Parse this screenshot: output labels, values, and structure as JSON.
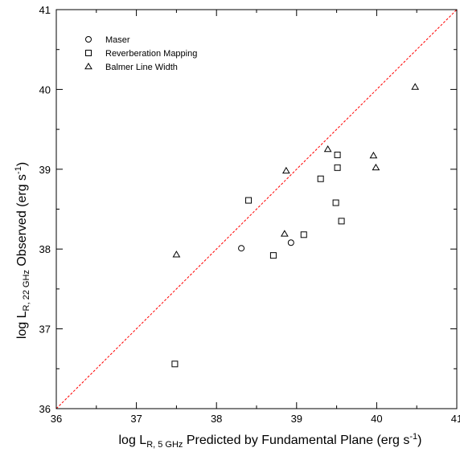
{
  "chart_data": {
    "type": "scatter",
    "xlim": [
      36,
      41
    ],
    "ylim": [
      36,
      41
    ],
    "x_ticks": [
      "36",
      "37",
      "38",
      "39",
      "40",
      "41"
    ],
    "y_ticks": [
      "36",
      "37",
      "38",
      "39",
      "40",
      "41"
    ],
    "xlabel": {
      "main": "log L",
      "sub": "R, 5 GHz",
      "rest": " Predicted by Fundamental Plane (erg s",
      "sup": "-1",
      "close": ")"
    },
    "ylabel": {
      "main": "log L",
      "sub": "R, 22 GHz",
      "rest": "  Observed (erg s",
      "sup": "-1",
      "close": ")"
    },
    "legend_position": "top-left",
    "grid": false,
    "reference_line": {
      "type": "one-to-one",
      "color": "#ff0000",
      "style": "dashed"
    },
    "series": [
      {
        "name": "Maser",
        "marker": "circle",
        "points": [
          [
            38.31,
            38.01
          ],
          [
            38.93,
            38.08
          ]
        ]
      },
      {
        "name": "Reverberation Mapping",
        "marker": "square",
        "points": [
          [
            38.4,
            38.61
          ],
          [
            38.71,
            37.92
          ],
          [
            39.09,
            38.18
          ],
          [
            39.3,
            38.88
          ],
          [
            39.51,
            39.18
          ],
          [
            39.51,
            39.02
          ],
          [
            39.49,
            38.58
          ],
          [
            39.56,
            38.35
          ],
          [
            37.48,
            36.56
          ]
        ]
      },
      {
        "name": "Balmer Line Width",
        "marker": "triangle",
        "points": [
          [
            37.5,
            37.93
          ],
          [
            38.87,
            38.98
          ],
          [
            38.85,
            38.19
          ],
          [
            39.39,
            39.25
          ],
          [
            39.96,
            39.17
          ],
          [
            39.99,
            39.02
          ],
          [
            40.48,
            40.03
          ]
        ]
      }
    ]
  }
}
